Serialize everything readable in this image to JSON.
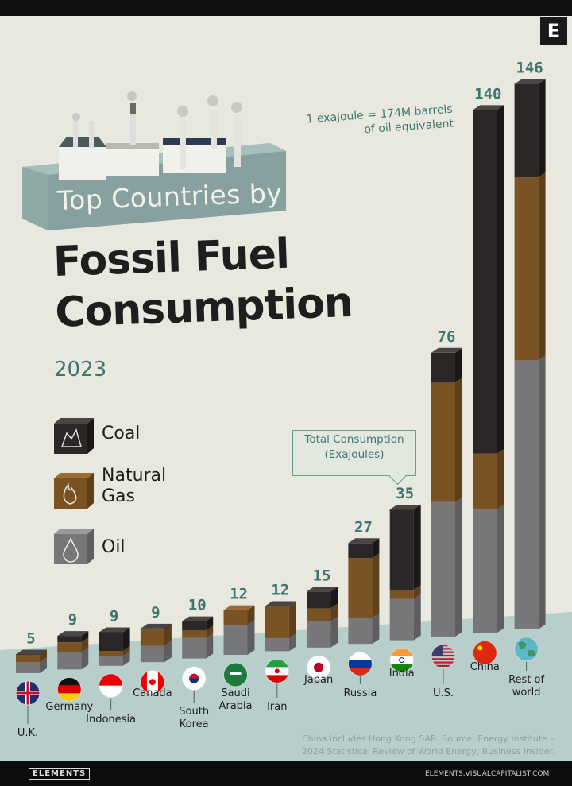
{
  "header": {
    "brand_mark": "E"
  },
  "title": {
    "subtitle": "Top Countries by",
    "line1": "Fossil Fuel",
    "line2": "Consumption",
    "year": "2023"
  },
  "note": {
    "line1": "1 exajoule = 174M barrels",
    "line2": "of oil equivalent"
  },
  "callout": {
    "line1": "Total Consumption",
    "line2": "(Exajoules)"
  },
  "legend": [
    {
      "label": "Coal",
      "icon": "coal-icon",
      "color": "#2b2727"
    },
    {
      "label": "Natural Gas",
      "label_line1": "Natural",
      "label_line2": "Gas",
      "icon": "flame-icon",
      "color": "#7a5224"
    },
    {
      "label": "Oil",
      "icon": "oil-drop-icon",
      "color": "#77777a"
    }
  ],
  "source": {
    "line1": "China includes Hong Kong SAR. Source: Energy Institute –",
    "line2": "2024 Statistical Review of World Energy, Business Insider."
  },
  "footer": {
    "logo": "ELEMENTS",
    "url": "ELEMENTS.VISUALCAPITALIST.COM"
  },
  "colors": {
    "background": "#e8e8de",
    "ground": "#b8cecb",
    "accent": "#3f7571"
  },
  "chart_data": {
    "type": "bar",
    "stacked": true,
    "unit": "Exajoules",
    "categories": [
      "U.K.",
      "Germany",
      "Indonesia",
      "Canada",
      "South Korea",
      "Saudi Arabia",
      "Iran",
      "Japan",
      "Russia",
      "India",
      "U.S.",
      "China",
      "Rest of world"
    ],
    "totals": [
      5,
      9,
      9,
      9,
      10,
      12,
      12,
      15,
      27,
      35,
      76,
      140,
      146
    ],
    "series": [
      {
        "name": "Coal",
        "values": [
          0.1,
          1.7,
          5,
          0.3,
          2.5,
          0,
          0.1,
          4.5,
          4,
          21.5,
          8,
          92,
          25
        ]
      },
      {
        "name": "Natural Gas",
        "values": [
          2,
          2.7,
          1.3,
          4.3,
          2,
          4,
          8.5,
          3.5,
          16,
          2.5,
          32,
          15,
          49
        ]
      },
      {
        "name": "Oil",
        "values": [
          2.9,
          4.6,
          2.7,
          4.4,
          5.5,
          8,
          3.5,
          7,
          7,
          11,
          36,
          33,
          72
        ]
      }
    ],
    "flags": [
      "uk-flag",
      "germany-flag",
      "indonesia-flag",
      "canada-flag",
      "south-korea-flag",
      "saudi-arabia-flag",
      "iran-flag",
      "japan-flag",
      "russia-flag",
      "india-flag",
      "us-flag",
      "china-flag",
      "globe-icon"
    ],
    "label_lines": [
      [
        "U.K."
      ],
      [
        "Germany"
      ],
      [
        "Indonesia"
      ],
      [
        "Canada"
      ],
      [
        "South",
        "Korea"
      ],
      [
        "Saudi",
        "Arabia"
      ],
      [
        "Iran"
      ],
      [
        "Japan"
      ],
      [
        "Russia"
      ],
      [
        "India"
      ],
      [
        "U.S."
      ],
      [
        "China"
      ],
      [
        "Rest of",
        "world"
      ]
    ]
  }
}
